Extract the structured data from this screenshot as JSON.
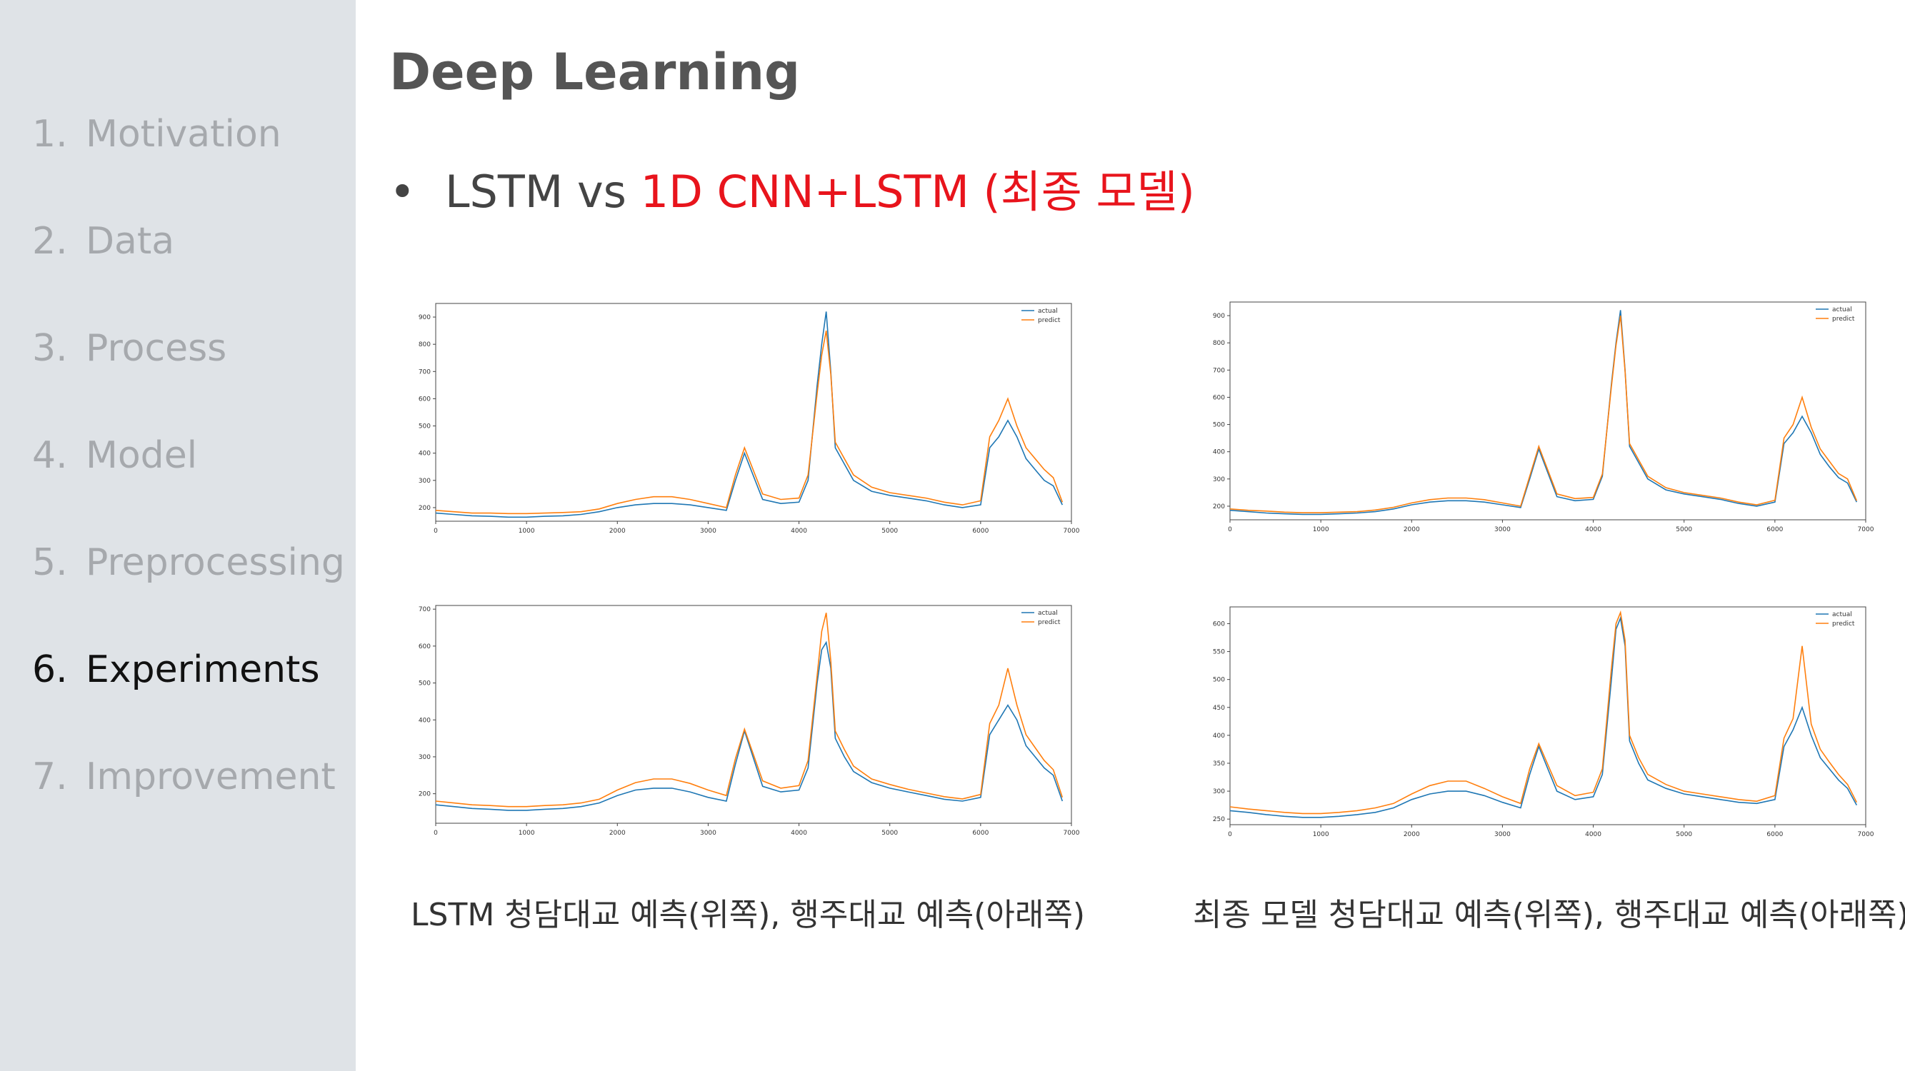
{
  "sidebar": {
    "items": [
      {
        "num": "1.",
        "label": "Motivation",
        "active": false
      },
      {
        "num": "2.",
        "label": "Data",
        "active": false
      },
      {
        "num": "3.",
        "label": "Process",
        "active": false
      },
      {
        "num": "4.",
        "label": "Model",
        "active": false
      },
      {
        "num": "5.",
        "label": "Preprocessing",
        "active": false
      },
      {
        "num": "6.",
        "label": "Experiments",
        "active": true
      },
      {
        "num": "7.",
        "label": "Improvement",
        "active": false
      }
    ]
  },
  "slide": {
    "title": "Deep Learning",
    "bullet_prefix": "LSTM vs ",
    "bullet_highlight": "1D CNN+LSTM (최종 모델)"
  },
  "captions": {
    "left": "LSTM 청담대교 예측(위쪽), 행주대교 예측(아래쪽)",
    "right": "최종 모델 청담대교 예측(위쪽), 행주대교 예측(아래쪽)"
  },
  "colors": {
    "actual": "#1f77b4",
    "predict": "#ff7f0e",
    "highlight": "#e8141c"
  },
  "chart_data": [
    {
      "type": "line",
      "xlim": [
        0,
        7000
      ],
      "ylim": [
        150,
        950
      ],
      "xticks": [
        0,
        1000,
        2000,
        3000,
        4000,
        5000,
        6000,
        7000
      ],
      "yticks": [
        200,
        300,
        400,
        500,
        600,
        700,
        800,
        900
      ],
      "legend": "top-right",
      "series": [
        {
          "name": "actual",
          "x": [
            0,
            200,
            400,
            600,
            800,
            1000,
            1200,
            1400,
            1600,
            1800,
            2000,
            2200,
            2400,
            2600,
            2800,
            3000,
            3200,
            3300,
            3400,
            3600,
            3800,
            4000,
            4100,
            4200,
            4250,
            4300,
            4350,
            4400,
            4500,
            4600,
            4800,
            5000,
            5200,
            5400,
            5600,
            5800,
            6000,
            6100,
            6200,
            6300,
            6400,
            6500,
            6600,
            6700,
            6800,
            6900
          ],
          "y": [
            180,
            175,
            170,
            168,
            165,
            165,
            168,
            170,
            175,
            185,
            200,
            210,
            215,
            215,
            210,
            200,
            190,
            300,
            400,
            230,
            215,
            220,
            300,
            650,
            800,
            920,
            700,
            420,
            360,
            300,
            260,
            245,
            235,
            225,
            210,
            200,
            210,
            420,
            460,
            520,
            460,
            380,
            340,
            300,
            280,
            210
          ]
        },
        {
          "name": "predict",
          "x": [
            0,
            200,
            400,
            600,
            800,
            1000,
            1200,
            1400,
            1600,
            1800,
            2000,
            2200,
            2400,
            2600,
            2800,
            3000,
            3200,
            3300,
            3400,
            3600,
            3800,
            4000,
            4100,
            4200,
            4250,
            4300,
            4350,
            4400,
            4500,
            4600,
            4800,
            5000,
            5200,
            5400,
            5600,
            5800,
            6000,
            6100,
            6200,
            6300,
            6400,
            6500,
            6600,
            6700,
            6800,
            6900
          ],
          "y": [
            190,
            185,
            180,
            180,
            178,
            178,
            180,
            182,
            185,
            195,
            215,
            230,
            240,
            240,
            230,
            215,
            200,
            320,
            420,
            250,
            230,
            235,
            320,
            620,
            760,
            850,
            690,
            440,
            380,
            320,
            275,
            255,
            245,
            235,
            220,
            210,
            225,
            460,
            520,
            600,
            500,
            420,
            380,
            340,
            310,
            220
          ]
        }
      ]
    },
    {
      "type": "line",
      "xlim": [
        0,
        7000
      ],
      "ylim": [
        150,
        950
      ],
      "xticks": [
        0,
        1000,
        2000,
        3000,
        4000,
        5000,
        6000,
        7000
      ],
      "yticks": [
        200,
        300,
        400,
        500,
        600,
        700,
        800,
        900
      ],
      "legend": "top-right",
      "series": [
        {
          "name": "actual",
          "x": [
            0,
            200,
            400,
            600,
            800,
            1000,
            1200,
            1400,
            1600,
            1800,
            2000,
            2200,
            2400,
            2600,
            2800,
            3000,
            3200,
            3300,
            3400,
            3600,
            3800,
            4000,
            4100,
            4200,
            4250,
            4300,
            4350,
            4400,
            4500,
            4600,
            4800,
            5000,
            5200,
            5400,
            5600,
            5800,
            6000,
            6100,
            6200,
            6300,
            6400,
            6500,
            6600,
            6700,
            6800,
            6900
          ],
          "y": [
            185,
            180,
            175,
            172,
            170,
            170,
            172,
            175,
            180,
            190,
            205,
            215,
            220,
            220,
            215,
            205,
            195,
            300,
            410,
            235,
            220,
            225,
            310,
            650,
            800,
            920,
            700,
            420,
            360,
            300,
            260,
            245,
            235,
            225,
            210,
            200,
            215,
            430,
            470,
            530,
            470,
            390,
            345,
            305,
            285,
            215
          ]
        },
        {
          "name": "predict",
          "x": [
            0,
            200,
            400,
            600,
            800,
            1000,
            1200,
            1400,
            1600,
            1800,
            2000,
            2200,
            2400,
            2600,
            2800,
            3000,
            3200,
            3300,
            3400,
            3600,
            3800,
            4000,
            4100,
            4200,
            4250,
            4300,
            4350,
            4400,
            4500,
            4600,
            4800,
            5000,
            5200,
            5400,
            5600,
            5800,
            6000,
            6100,
            6200,
            6300,
            6400,
            6500,
            6600,
            6700,
            6800,
            6900
          ],
          "y": [
            190,
            185,
            182,
            178,
            176,
            176,
            178,
            180,
            186,
            196,
            212,
            224,
            230,
            230,
            224,
            212,
            200,
            310,
            420,
            245,
            228,
            232,
            318,
            640,
            790,
            900,
            695,
            430,
            370,
            310,
            268,
            250,
            240,
            230,
            215,
            205,
            222,
            450,
            500,
            600,
            490,
            410,
            365,
            320,
            300,
            220
          ]
        }
      ]
    },
    {
      "type": "line",
      "xlim": [
        0,
        7000
      ],
      "ylim": [
        120,
        710
      ],
      "xticks": [
        0,
        1000,
        2000,
        3000,
        4000,
        5000,
        6000,
        7000
      ],
      "yticks": [
        200,
        300,
        400,
        500,
        600,
        700
      ],
      "legend": "top-right",
      "series": [
        {
          "name": "actual",
          "x": [
            0,
            200,
            400,
            600,
            800,
            1000,
            1200,
            1400,
            1600,
            1800,
            2000,
            2200,
            2400,
            2600,
            2800,
            3000,
            3200,
            3300,
            3400,
            3600,
            3800,
            4000,
            4100,
            4200,
            4250,
            4300,
            4350,
            4400,
            4500,
            4600,
            4800,
            5000,
            5200,
            5400,
            5600,
            5800,
            6000,
            6100,
            6200,
            6300,
            6400,
            6500,
            6600,
            6700,
            6800,
            6900
          ],
          "y": [
            170,
            165,
            160,
            158,
            155,
            155,
            158,
            160,
            165,
            175,
            195,
            210,
            215,
            215,
            205,
            190,
            180,
            280,
            370,
            220,
            205,
            210,
            270,
            500,
            590,
            610,
            540,
            350,
            300,
            260,
            230,
            215,
            205,
            195,
            185,
            180,
            190,
            360,
            400,
            440,
            400,
            330,
            300,
            270,
            250,
            180
          ]
        },
        {
          "name": "predict",
          "x": [
            0,
            200,
            400,
            600,
            800,
            1000,
            1200,
            1400,
            1600,
            1800,
            2000,
            2200,
            2400,
            2600,
            2800,
            3000,
            3200,
            3300,
            3400,
            3600,
            3800,
            4000,
            4100,
            4200,
            4250,
            4300,
            4350,
            4400,
            4500,
            4600,
            4800,
            5000,
            5200,
            5400,
            5600,
            5800,
            6000,
            6100,
            6200,
            6300,
            6400,
            6500,
            6600,
            6700,
            6800,
            6900
          ],
          "y": [
            180,
            175,
            170,
            168,
            165,
            165,
            168,
            170,
            175,
            185,
            210,
            230,
            240,
            240,
            228,
            210,
            195,
            295,
            375,
            235,
            215,
            222,
            290,
            520,
            640,
            690,
            560,
            370,
            320,
            275,
            240,
            225,
            212,
            202,
            192,
            186,
            198,
            390,
            440,
            540,
            440,
            360,
            325,
            290,
            265,
            190
          ]
        }
      ]
    },
    {
      "type": "line",
      "xlim": [
        0,
        7000
      ],
      "ylim": [
        240,
        630
      ],
      "xticks": [
        0,
        1000,
        2000,
        3000,
        4000,
        5000,
        6000,
        7000
      ],
      "yticks": [
        250,
        300,
        350,
        400,
        450,
        500,
        550,
        600
      ],
      "legend": "top-right",
      "series": [
        {
          "name": "actual",
          "x": [
            0,
            200,
            400,
            600,
            800,
            1000,
            1200,
            1400,
            1600,
            1800,
            2000,
            2200,
            2400,
            2600,
            2800,
            3000,
            3200,
            3300,
            3400,
            3600,
            3800,
            4000,
            4100,
            4200,
            4250,
            4300,
            4350,
            4400,
            4500,
            4600,
            4800,
            5000,
            5200,
            5400,
            5600,
            5800,
            6000,
            6100,
            6200,
            6300,
            6400,
            6500,
            6600,
            6700,
            6800,
            6900
          ],
          "y": [
            265,
            262,
            258,
            255,
            253,
            253,
            255,
            258,
            262,
            270,
            285,
            295,
            300,
            300,
            292,
            280,
            270,
            330,
            380,
            300,
            285,
            290,
            330,
            500,
            590,
            610,
            560,
            390,
            350,
            320,
            305,
            295,
            290,
            285,
            280,
            278,
            285,
            380,
            410,
            450,
            400,
            360,
            340,
            320,
            305,
            275
          ]
        },
        {
          "name": "predict",
          "x": [
            0,
            200,
            400,
            600,
            800,
            1000,
            1200,
            1400,
            1600,
            1800,
            2000,
            2200,
            2400,
            2600,
            2800,
            3000,
            3200,
            3300,
            3400,
            3600,
            3800,
            4000,
            4100,
            4200,
            4250,
            4300,
            4350,
            4400,
            4500,
            4600,
            4800,
            5000,
            5200,
            5400,
            5600,
            5800,
            6000,
            6100,
            6200,
            6300,
            6400,
            6500,
            6600,
            6700,
            6800,
            6900
          ],
          "y": [
            272,
            268,
            265,
            262,
            260,
            260,
            262,
            265,
            270,
            278,
            295,
            310,
            318,
            318,
            305,
            290,
            278,
            340,
            385,
            310,
            292,
            298,
            340,
            520,
            600,
            620,
            570,
            400,
            360,
            330,
            312,
            300,
            295,
            290,
            285,
            282,
            292,
            395,
            430,
            560,
            420,
            375,
            352,
            330,
            312,
            280
          ]
        }
      ]
    }
  ]
}
